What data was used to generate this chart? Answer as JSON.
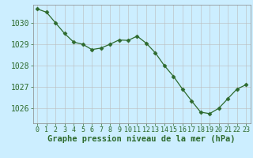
{
  "x": [
    0,
    1,
    2,
    3,
    4,
    5,
    6,
    7,
    8,
    9,
    10,
    11,
    12,
    13,
    14,
    15,
    16,
    17,
    18,
    19,
    20,
    21,
    22,
    23
  ],
  "y": [
    1030.65,
    1030.5,
    1030.0,
    1029.5,
    1029.1,
    1029.0,
    1028.75,
    1028.82,
    1029.0,
    1029.2,
    1029.18,
    1029.38,
    1029.05,
    1028.6,
    1028.0,
    1027.5,
    1026.9,
    1026.35,
    1025.82,
    1025.75,
    1026.0,
    1026.45,
    1026.9,
    1027.1
  ],
  "line_color": "#2d6a2d",
  "marker": "D",
  "marker_size": 2.5,
  "bg_color": "#cceeff",
  "grid_color": "#bbbbbb",
  "ylabel_ticks": [
    1026,
    1027,
    1028,
    1029,
    1030
  ],
  "xlabel_label": "Graphe pression niveau de la mer (hPa)",
  "xlabel_fontsize": 7.5,
  "ylabel_fontsize": 7,
  "tick_fontsize": 6,
  "xlim": [
    -0.5,
    23.5
  ],
  "ylim": [
    1025.3,
    1030.85
  ]
}
